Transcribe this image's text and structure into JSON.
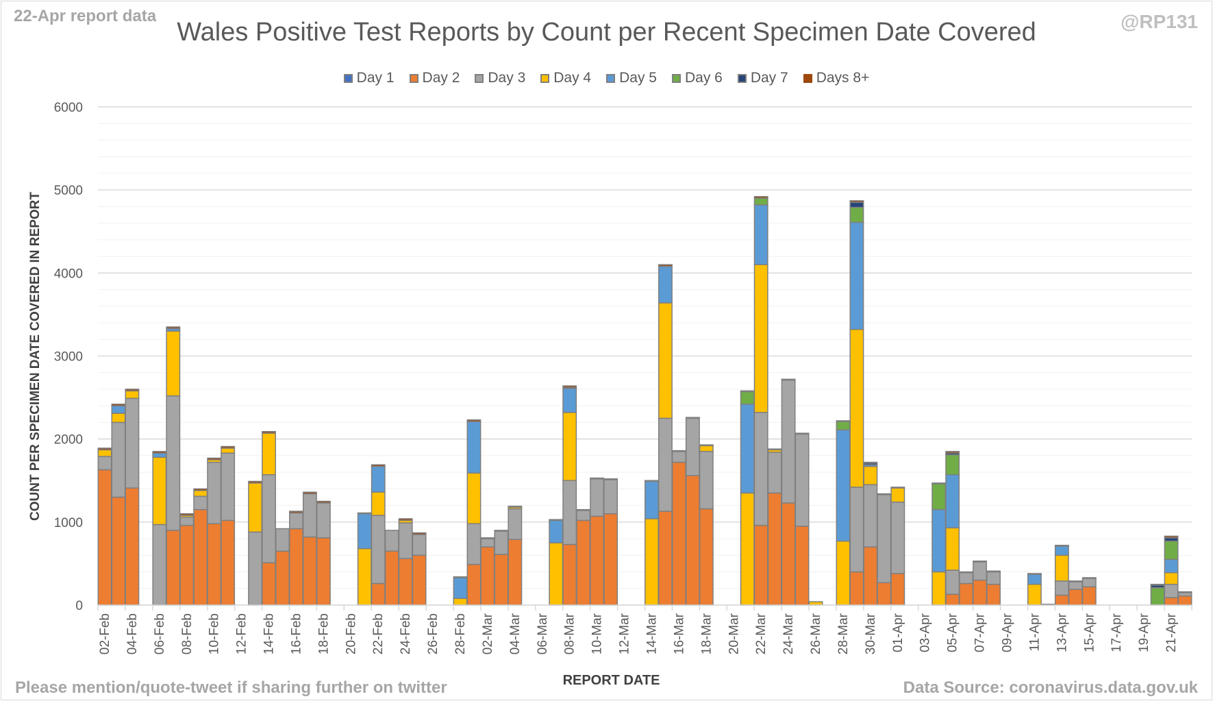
{
  "header": {
    "corner_left": "22-Apr report data",
    "corner_right": "@RP131"
  },
  "footer": {
    "left": "Please mention/quote-tweet if sharing further on twitter",
    "right": "Data Source: coronavirus.data.gov.uk"
  },
  "chart_data": {
    "type": "bar",
    "stacked": true,
    "title": "Wales Positive Test Reports by Count per Recent Specimen Date Covered",
    "xlabel": "REPORT DATE",
    "ylabel": "COUNT PER SPECIMEN DATE COVERED IN REPORT",
    "ylim": [
      0,
      6000
    ],
    "yticks": [
      0,
      1000,
      2000,
      3000,
      4000,
      5000,
      6000
    ],
    "grid": true,
    "legend_position": "top",
    "colors": {
      "Day 1": "#4472c4",
      "Day 2": "#ed7d31",
      "Day 3": "#a5a5a5",
      "Day 4": "#ffc000",
      "Day 5": "#5b9bd5",
      "Day 6": "#70ad47",
      "Day 7": "#264478",
      "Days 8+": "#9e480e"
    },
    "categories": [
      "02-Feb",
      "03-Feb",
      "04-Feb",
      "05-Feb",
      "06-Feb",
      "07-Feb",
      "08-Feb",
      "09-Feb",
      "10-Feb",
      "11-Feb",
      "12-Feb",
      "13-Feb",
      "14-Feb",
      "15-Feb",
      "16-Feb",
      "17-Feb",
      "18-Feb",
      "19-Feb",
      "20-Feb",
      "21-Feb",
      "22-Feb",
      "23-Feb",
      "24-Feb",
      "25-Feb",
      "26-Feb",
      "27-Feb",
      "28-Feb",
      "01-Mar",
      "02-Mar",
      "03-Mar",
      "04-Mar",
      "05-Mar",
      "06-Mar",
      "07-Mar",
      "08-Mar",
      "09-Mar",
      "10-Mar",
      "11-Mar",
      "12-Mar",
      "13-Mar",
      "14-Mar",
      "15-Mar",
      "16-Mar",
      "17-Mar",
      "18-Mar",
      "19-Mar",
      "20-Mar",
      "21-Mar",
      "22-Mar",
      "23-Mar",
      "24-Mar",
      "25-Mar",
      "26-Mar",
      "27-Mar",
      "28-Mar",
      "29-Mar",
      "30-Mar",
      "31-Mar",
      "01-Apr",
      "02-Apr",
      "03-Apr",
      "04-Apr",
      "05-Apr",
      "06-Apr",
      "07-Apr",
      "08-Apr",
      "09-Apr",
      "10-Apr",
      "11-Apr",
      "12-Apr",
      "13-Apr",
      "14-Apr",
      "15-Apr",
      "16-Apr",
      "17-Apr",
      "18-Apr",
      "19-Apr",
      "20-Apr",
      "21-Apr",
      "22-Apr"
    ],
    "tick_labels": [
      "02-Feb",
      "04-Feb",
      "06-Feb",
      "08-Feb",
      "10-Feb",
      "12-Feb",
      "14-Feb",
      "16-Feb",
      "18-Feb",
      "20-Feb",
      "22-Feb",
      "24-Feb",
      "26-Feb",
      "28-Feb",
      "02-Mar",
      "04-Mar",
      "06-Mar",
      "08-Mar",
      "10-Mar",
      "12-Mar",
      "14-Mar",
      "16-Mar",
      "18-Mar",
      "20-Mar",
      "22-Mar",
      "24-Mar",
      "26-Mar",
      "28-Mar",
      "30-Mar",
      "01-Apr",
      "03-Apr",
      "05-Apr",
      "07-Apr",
      "09-Apr",
      "11-Apr",
      "13-Apr",
      "15-Apr",
      "17-Apr",
      "19-Apr",
      "21-Apr"
    ],
    "series": [
      {
        "name": "Day 1",
        "values": [
          0,
          0,
          0,
          0,
          0,
          0,
          0,
          0,
          0,
          0,
          0,
          0,
          0,
          0,
          0,
          0,
          0,
          0,
          0,
          0,
          0,
          0,
          0,
          0,
          0,
          0,
          0,
          0,
          0,
          0,
          0,
          0,
          0,
          0,
          0,
          0,
          0,
          0,
          0,
          0,
          0,
          0,
          0,
          0,
          0,
          0,
          0,
          0,
          0,
          0,
          0,
          0,
          0,
          0,
          0,
          0,
          0,
          0,
          0,
          0,
          0,
          0,
          0,
          0,
          0,
          0,
          0,
          0,
          0,
          0,
          0,
          0,
          0,
          0,
          0,
          0,
          0,
          0,
          0,
          0
        ]
      },
      {
        "name": "Day 2",
        "values": [
          1630,
          1300,
          1410,
          0,
          0,
          900,
          960,
          1150,
          980,
          1020,
          0,
          0,
          510,
          650,
          920,
          820,
          810,
          0,
          0,
          0,
          260,
          650,
          560,
          600,
          0,
          0,
          0,
          490,
          700,
          610,
          790,
          0,
          0,
          0,
          730,
          1020,
          1070,
          1100,
          0,
          0,
          0,
          1130,
          1720,
          1560,
          1160,
          0,
          0,
          0,
          960,
          1350,
          1230,
          950,
          0,
          0,
          0,
          400,
          700,
          270,
          380,
          0,
          0,
          0,
          130,
          260,
          300,
          250,
          0,
          0,
          0,
          0,
          120,
          190,
          220,
          0,
          0,
          0,
          0,
          0,
          90,
          110
        ]
      },
      {
        "name": "Day 3",
        "values": [
          160,
          900,
          1080,
          0,
          970,
          1620,
          100,
          160,
          740,
          810,
          0,
          880,
          1060,
          270,
          190,
          520,
          420,
          0,
          0,
          0,
          820,
          250,
          430,
          250,
          0,
          0,
          0,
          490,
          100,
          280,
          370,
          0,
          0,
          0,
          770,
          120,
          450,
          410,
          0,
          0,
          0,
          1120,
          130,
          690,
          690,
          0,
          0,
          0,
          1360,
          490,
          1480,
          1110,
          0,
          0,
          0,
          1020,
          750,
          1060,
          860,
          0,
          0,
          0,
          290,
          130,
          220,
          150,
          0,
          0,
          0,
          0,
          170,
          90,
          100,
          0,
          0,
          0,
          0,
          0,
          160,
          40
        ]
      },
      {
        "name": "Day 4",
        "values": [
          80,
          110,
          90,
          0,
          810,
          780,
          20,
          70,
          30,
          60,
          0,
          590,
          500,
          0,
          0,
          0,
          0,
          0,
          0,
          680,
          280,
          0,
          30,
          0,
          0,
          0,
          80,
          610,
          0,
          0,
          20,
          0,
          0,
          750,
          820,
          0,
          0,
          0,
          0,
          0,
          1040,
          1390,
          0,
          0,
          70,
          0,
          0,
          1350,
          1780,
          30,
          0,
          0,
          40,
          0,
          770,
          1900,
          220,
          0,
          170,
          0,
          0,
          400,
          510,
          0,
          0,
          0,
          0,
          0,
          250,
          0,
          310,
          0,
          0,
          0,
          0,
          0,
          0,
          0,
          140,
          0
        ]
      },
      {
        "name": "Day 5",
        "values": [
          0,
          90,
          0,
          0,
          50,
          30,
          0,
          0,
          0,
          0,
          0,
          0,
          0,
          0,
          0,
          0,
          0,
          0,
          0,
          420,
          310,
          0,
          0,
          0,
          0,
          0,
          250,
          620,
          0,
          0,
          0,
          0,
          0,
          270,
          290,
          0,
          0,
          0,
          0,
          0,
          450,
          440,
          0,
          0,
          0,
          0,
          0,
          1070,
          720,
          0,
          0,
          0,
          0,
          0,
          1340,
          1290,
          20,
          0,
          0,
          0,
          0,
          750,
          640,
          0,
          0,
          0,
          0,
          0,
          120,
          0,
          110,
          0,
          0,
          0,
          0,
          0,
          0,
          0,
          160,
          0
        ]
      },
      {
        "name": "Day 6",
        "values": [
          0,
          0,
          0,
          0,
          0,
          0,
          0,
          0,
          0,
          0,
          0,
          0,
          0,
          0,
          0,
          0,
          0,
          0,
          0,
          0,
          0,
          0,
          0,
          0,
          0,
          0,
          0,
          0,
          0,
          0,
          0,
          0,
          0,
          0,
          10,
          0,
          0,
          0,
          0,
          0,
          0,
          0,
          0,
          0,
          0,
          0,
          0,
          150,
          80,
          0,
          0,
          0,
          0,
          0,
          100,
          180,
          0,
          0,
          0,
          0,
          0,
          310,
          240,
          0,
          0,
          0,
          0,
          0,
          0,
          0,
          0,
          0,
          0,
          0,
          0,
          0,
          0,
          210,
          220,
          0
        ]
      },
      {
        "name": "Day 7",
        "values": [
          0,
          0,
          0,
          0,
          0,
          0,
          0,
          0,
          0,
          0,
          0,
          0,
          0,
          0,
          0,
          0,
          0,
          0,
          0,
          0,
          0,
          0,
          0,
          0,
          0,
          0,
          0,
          0,
          0,
          0,
          0,
          0,
          0,
          0,
          0,
          0,
          0,
          0,
          0,
          0,
          0,
          0,
          0,
          0,
          0,
          0,
          0,
          0,
          0,
          0,
          0,
          0,
          0,
          0,
          0,
          60,
          20,
          0,
          0,
          0,
          0,
          0,
          20,
          0,
          0,
          0,
          0,
          0,
          0,
          0,
          0,
          0,
          0,
          0,
          0,
          0,
          0,
          30,
          40,
          0
        ]
      },
      {
        "name": "Days 8+",
        "values": [
          20,
          20,
          20,
          0,
          20,
          20,
          20,
          20,
          20,
          20,
          0,
          20,
          20,
          0,
          20,
          20,
          20,
          0,
          0,
          10,
          20,
          0,
          20,
          20,
          0,
          0,
          10,
          20,
          10,
          10,
          10,
          0,
          0,
          10,
          20,
          10,
          10,
          10,
          0,
          0,
          10,
          20,
          10,
          10,
          10,
          0,
          0,
          10,
          20,
          10,
          10,
          10,
          0,
          0,
          10,
          20,
          10,
          10,
          10,
          0,
          0,
          10,
          20,
          10,
          10,
          10,
          0,
          0,
          10,
          10,
          10,
          10,
          10,
          0,
          0,
          0,
          0,
          10,
          20,
          10
        ]
      }
    ]
  }
}
